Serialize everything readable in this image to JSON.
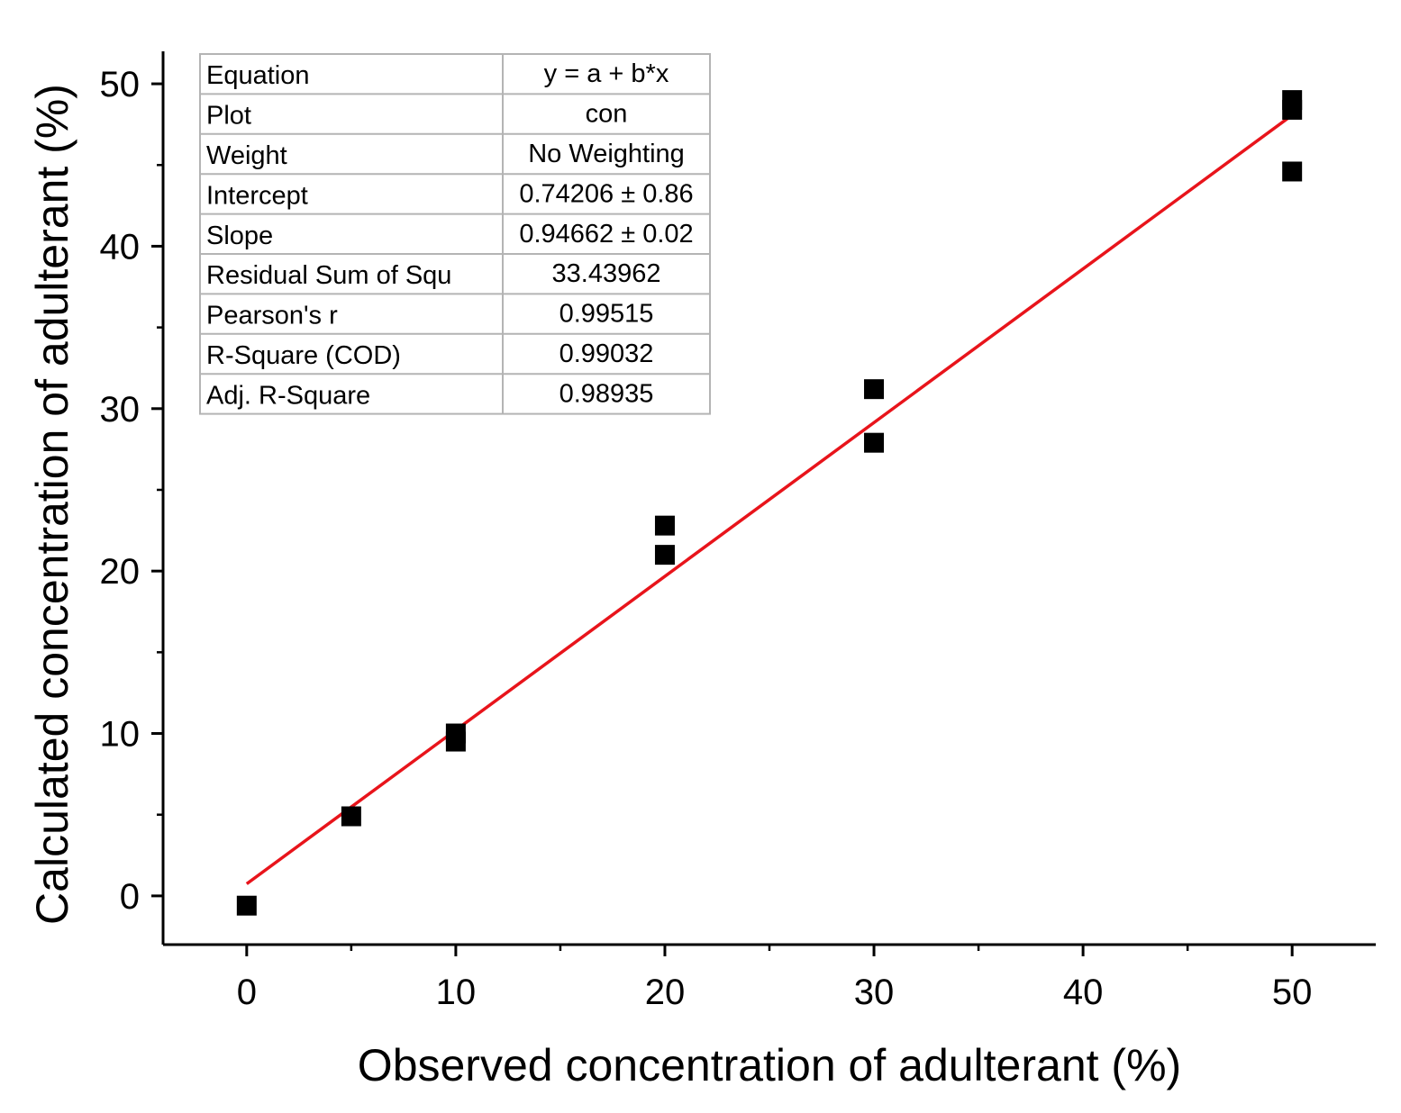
{
  "chart_data": {
    "type": "scatter",
    "title": "",
    "xlabel": "Observed concentration of adulterant (%)",
    "ylabel": "Calculated concentration of adulterant (%)",
    "xlim": [
      -4,
      54
    ],
    "ylim": [
      -3,
      52
    ],
    "x_ticks": [
      0,
      10,
      20,
      30,
      40,
      50
    ],
    "y_ticks": [
      0,
      10,
      20,
      30,
      40,
      50
    ],
    "grid": false,
    "marker_color": "#000000",
    "points": [
      {
        "x": 0,
        "y": -0.6
      },
      {
        "x": 5,
        "y": 4.9
      },
      {
        "x": 10,
        "y": 10.0
      },
      {
        "x": 10,
        "y": 9.5
      },
      {
        "x": 20,
        "y": 22.8
      },
      {
        "x": 20,
        "y": 21.0
      },
      {
        "x": 30,
        "y": 31.2
      },
      {
        "x": 30,
        "y": 27.9
      },
      {
        "x": 50,
        "y": 49.0
      },
      {
        "x": 50,
        "y": 48.4
      },
      {
        "x": 50,
        "y": 44.6
      }
    ],
    "fit_line": {
      "color": "#e8141b",
      "intercept": 0.74206,
      "slope": 0.94662,
      "x_range": [
        0,
        50
      ]
    },
    "stats_table": [
      {
        "label": "Equation",
        "value": "y = a + b*x"
      },
      {
        "label": "Plot",
        "value": "con"
      },
      {
        "label": "Weight",
        "value": "No Weighting"
      },
      {
        "label": "Intercept",
        "value": "0.74206 ± 0.86"
      },
      {
        "label": "Slope",
        "value": "0.94662 ± 0.02"
      },
      {
        "label": "Residual Sum of Squ",
        "value": "33.43962"
      },
      {
        "label": "Pearson's r",
        "value": "0.99515"
      },
      {
        "label": "R-Square (COD)",
        "value": "0.99032"
      },
      {
        "label": "Adj. R-Square",
        "value": "0.98935"
      }
    ]
  }
}
